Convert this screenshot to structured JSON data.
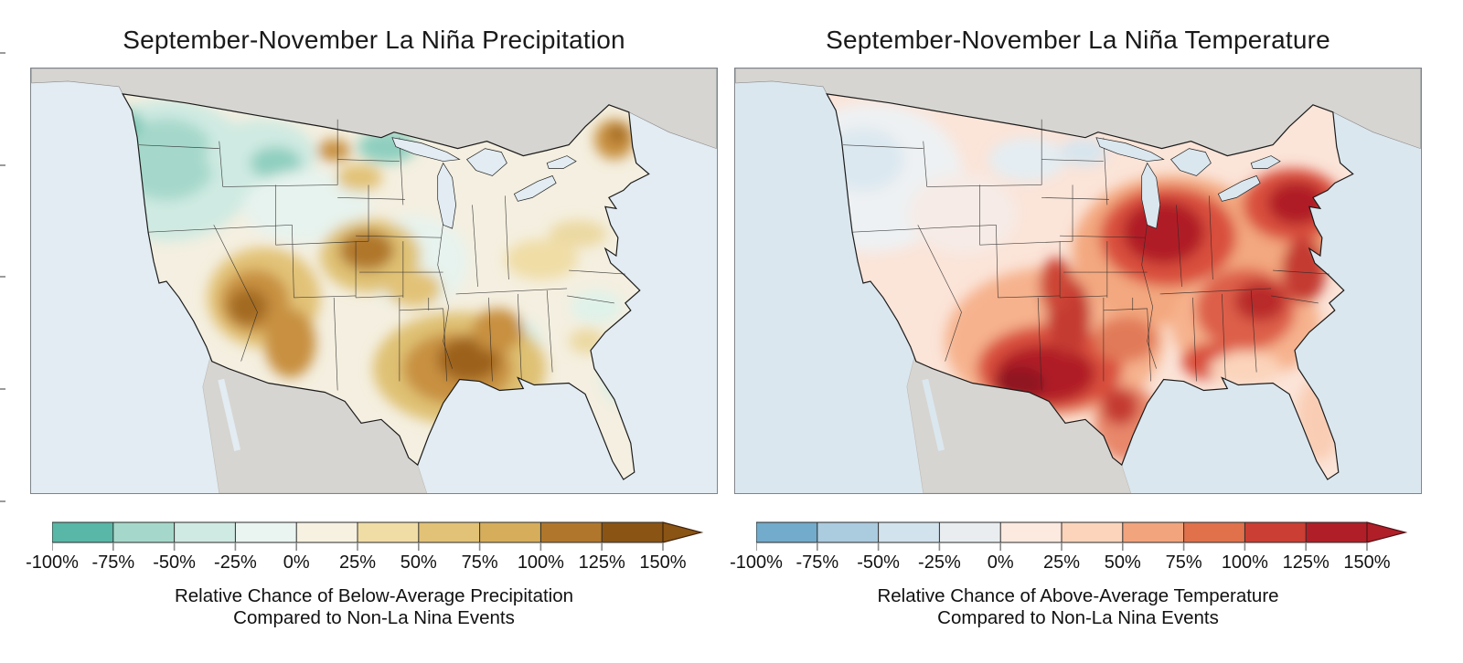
{
  "figure": {
    "background": "#ffffff",
    "edge_ticks": {
      "color": "#9b9b9b",
      "positions_y": [
        57,
        180,
        302,
        425,
        548
      ]
    }
  },
  "panels": [
    {
      "title": "September-November La Niña Precipitation",
      "caption_line1": "Relative Chance of Below-Average Precipitation",
      "caption_line2": "Compared to Non-La Nina Events",
      "colorbar": {
        "tick_labels": [
          "-100%",
          "-75%",
          "-50%",
          "-25%",
          "0%",
          "25%",
          "50%",
          "75%",
          "100%",
          "125%",
          "150%"
        ],
        "segment_colors": [
          "#58b7a6",
          "#a5d8ca",
          "#cfeae2",
          "#eaf4f0",
          "#f7f1e1",
          "#f0dda6",
          "#e2c277",
          "#d6ad5a",
          "#b0772c",
          "#8a5414"
        ],
        "arrow_color": "#8a5414",
        "outline_color": "#40220a",
        "tick_color": "#8a8a8a"
      },
      "map": {
        "ocean": "#e2ecf2",
        "neighbor_land": "#d7d5d1",
        "base": "#f4efe0",
        "border": "#1b1b1b",
        "state_border": "#2a2a2a"
      }
    },
    {
      "title": "September-November La Niña Temperature",
      "caption_line1": "Relative Chance of Above-Average Temperature",
      "caption_line2": "Compared to Non-La Nina Events",
      "colorbar": {
        "tick_labels": [
          "-100%",
          "-75%",
          "-50%",
          "-25%",
          "0%",
          "25%",
          "50%",
          "75%",
          "100%",
          "125%",
          "150%"
        ],
        "segment_colors": [
          "#72abcb",
          "#abcbdf",
          "#d2e3ee",
          "#e9edf0",
          "#fce9df",
          "#fbd4bb",
          "#f2a47d",
          "#e0714b",
          "#cb3e33",
          "#b01f28"
        ],
        "arrow_color": "#b01f28",
        "outline_color": "#531015",
        "tick_color": "#8a8a8a"
      },
      "map": {
        "ocean": "#dbe7ef",
        "neighbor_land": "#d7d5d1",
        "base": "#fbe4d8",
        "border": "#1b1b1b",
        "state_border": "#2a2a2a"
      }
    }
  ],
  "chart_data": [
    {
      "type": "heatmap",
      "title": "September-November La Niña Precipitation",
      "legend_label": "Relative Chance of Below-Average Precipitation Compared to Non-La Nina Events",
      "unit": "%",
      "geography": "Contiguous United States choropleth",
      "scale_ticks": [
        -100,
        -75,
        -50,
        -25,
        0,
        25,
        50,
        75,
        100,
        125,
        150
      ],
      "scale_colors": [
        "#58b7a6",
        "#a5d8ca",
        "#cfeae2",
        "#eaf4f0",
        "#f7f1e1",
        "#f0dda6",
        "#e2c277",
        "#d6ad5a",
        "#b0772c",
        "#8a5414"
      ],
      "scale_open_ended_high": true,
      "regional_estimates": {
        "Pacific Northwest (WA/OR/N Idaho)": -40,
        "Western Montana": -30,
        "Northern Minnesota": -40,
        "Great Basin / Nevada-Arizona": 80,
        "Colorado-Nebraska panhandle": 75,
        "Texas-Oklahoma-Arkansas-Louisiana": 100,
        "Upper Midwest / Great Lakes": 0,
        "Mississippi-Alabama": -10,
        "Florida peninsula": -15,
        "Mid-Atlantic coast": 30,
        "Maine": 70
      }
    },
    {
      "type": "heatmap",
      "title": "September-November La Niña Temperature",
      "legend_label": "Relative Chance of Above-Average Temperature Compared to Non-La Nina Events",
      "unit": "%",
      "geography": "Contiguous United States choropleth",
      "scale_ticks": [
        -100,
        -75,
        -50,
        -25,
        0,
        25,
        50,
        75,
        100,
        125,
        150
      ],
      "scale_colors": [
        "#72abcb",
        "#abcbdf",
        "#d2e3ee",
        "#e9edf0",
        "#fce9df",
        "#fbd4bb",
        "#f2a47d",
        "#e0714b",
        "#cb3e33",
        "#b01f28"
      ],
      "scale_open_ended_high": true,
      "regional_estimates": {
        "Pacific Northwest": -15,
        "Northern Rockies / Northern Plains": 10,
        "California": 15,
        "Southern New Mexico / West Texas": 135,
        "Colorado Front Range": 100,
        "Central-Southern Plains": 60,
        "Midwest / Great Lakes": 110,
        "Northeast (NY-New England)": 110,
        "Southeast / Carolinas": 90,
        "Florida peninsula": 30
      }
    }
  ]
}
